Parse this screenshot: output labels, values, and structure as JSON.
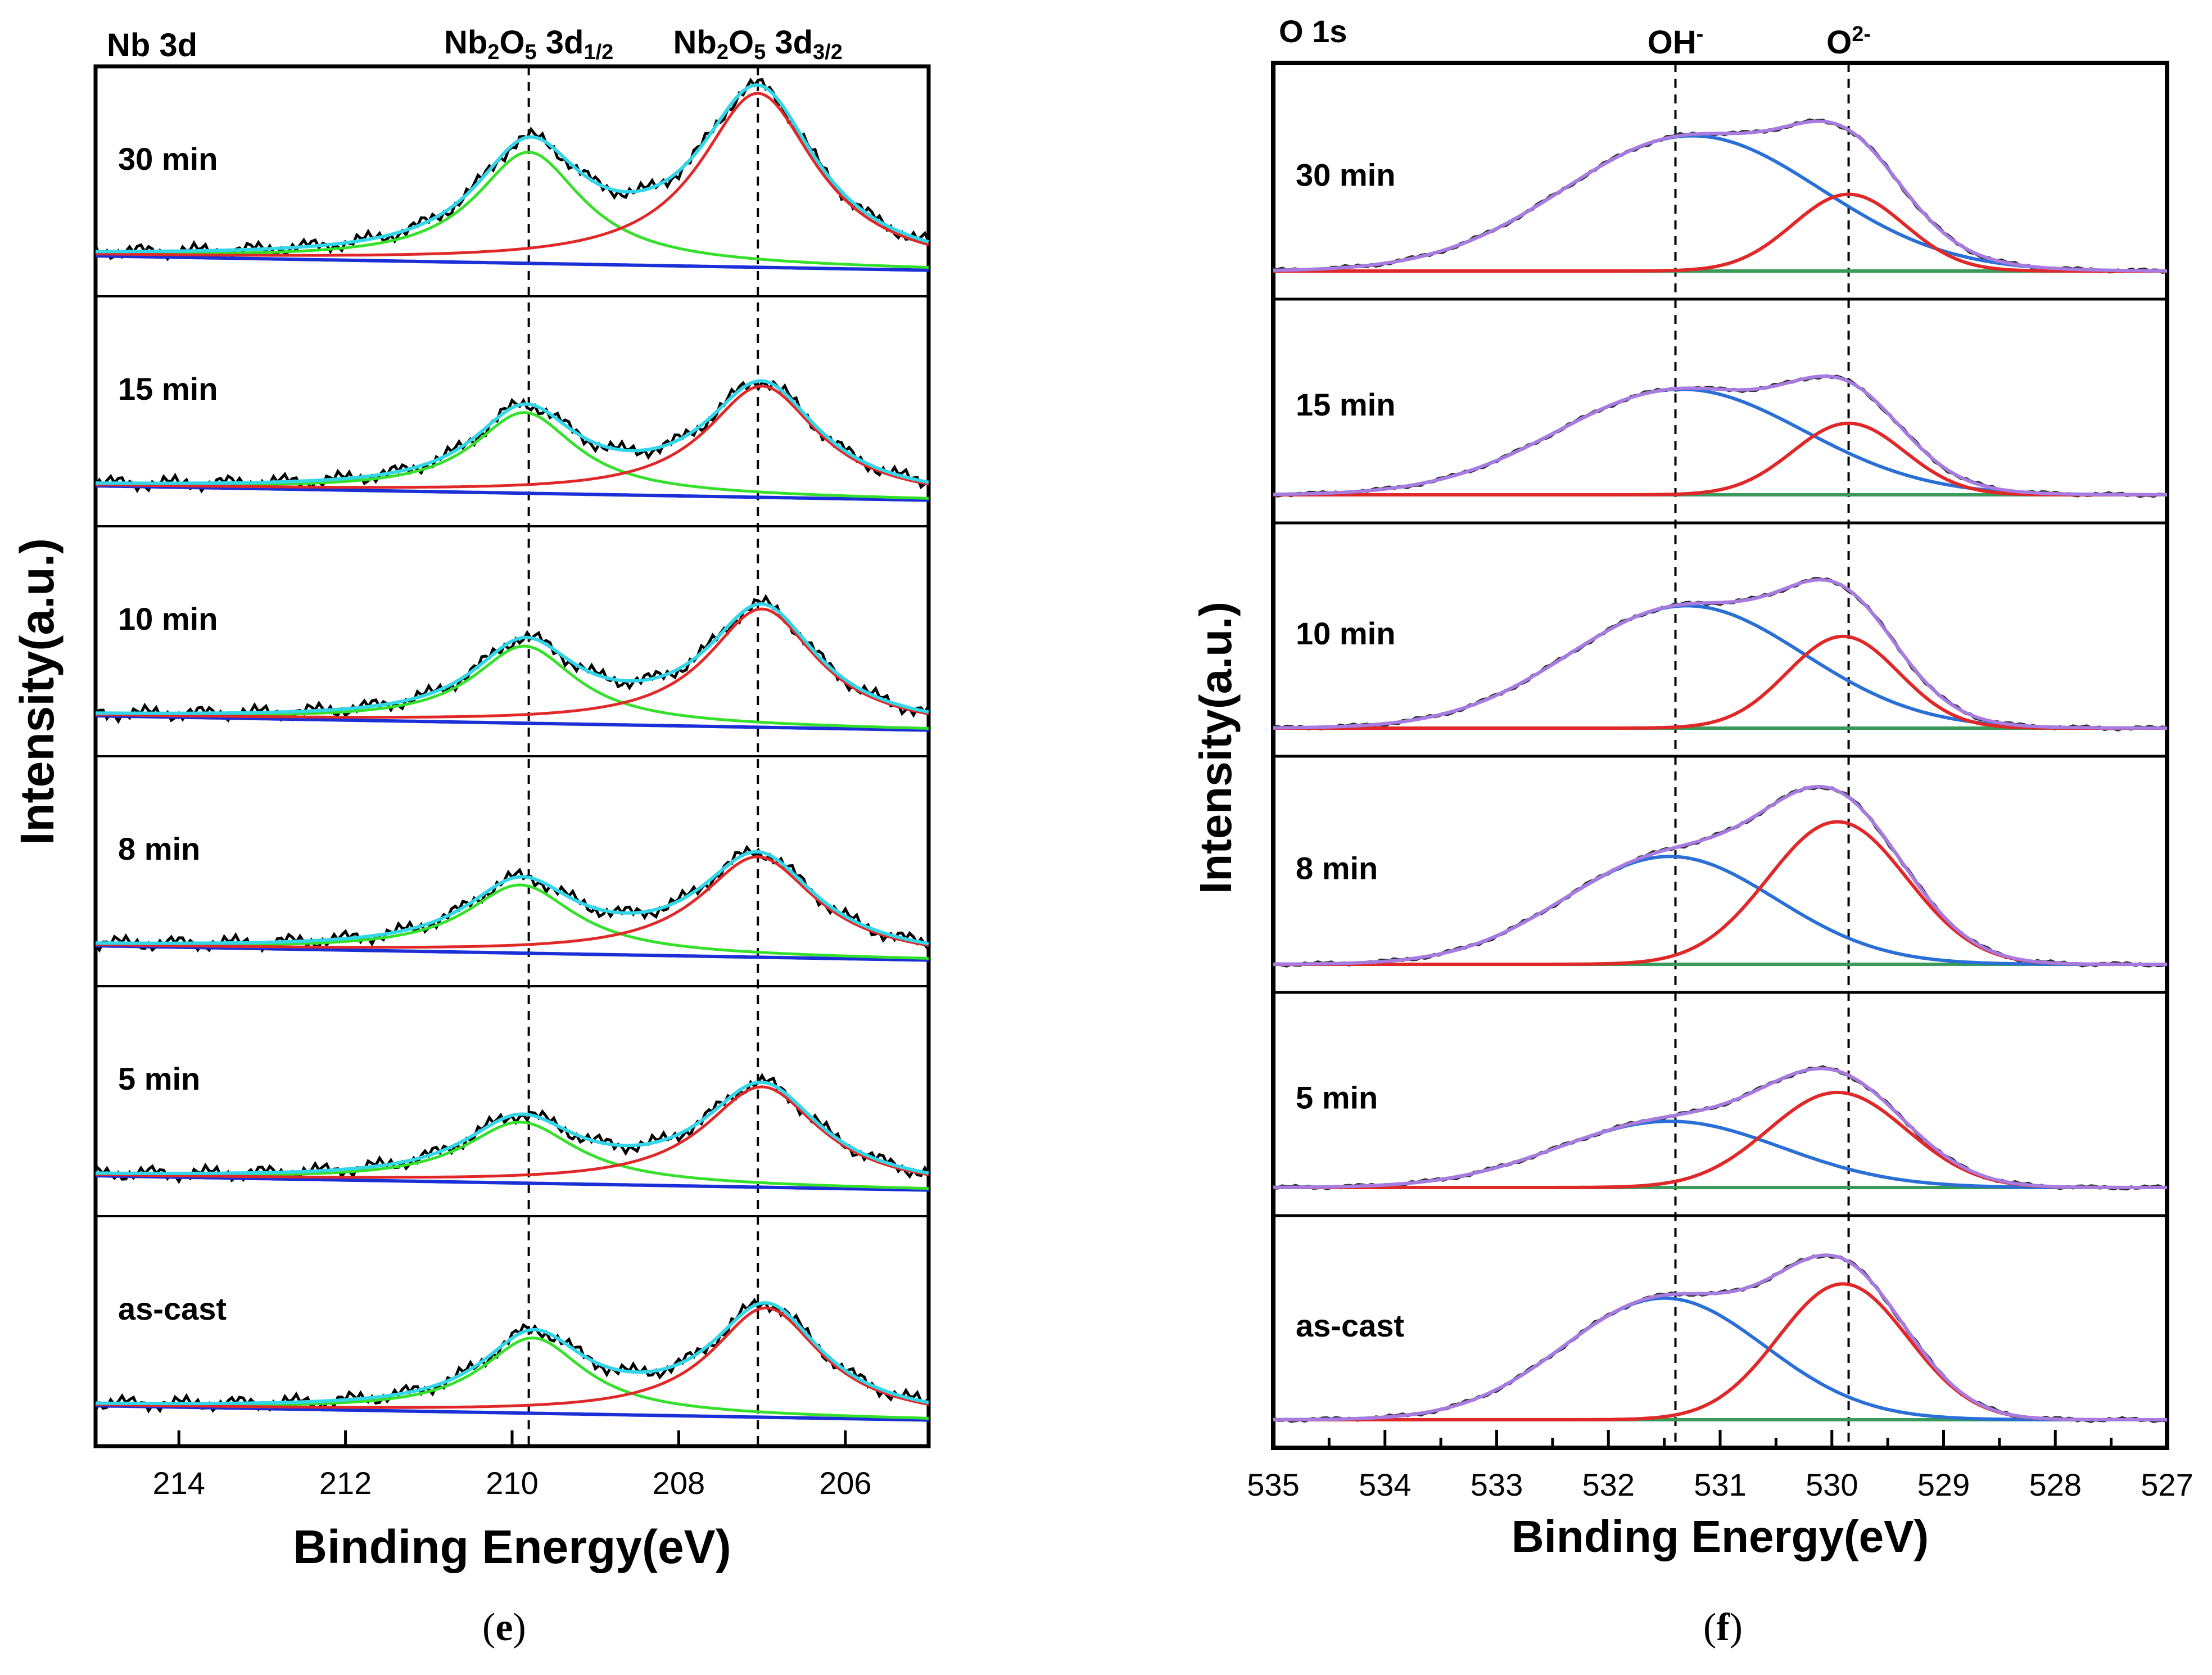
{
  "chart_data": [
    {
      "type": "line",
      "panel_id": "e",
      "title": "Nb 3d",
      "xlabel": "Binding Energy(eV)",
      "ylabel": "Intensity(a.u.)",
      "xlim": [
        215,
        205
      ],
      "x_reversed": true,
      "xticks": [
        214,
        212,
        210,
        208,
        206
      ],
      "xtick_labels": [
        "214",
        "212",
        "210",
        "208",
        "206"
      ],
      "reference_lines": [
        {
          "x": 209.8,
          "label_main": "Nb",
          "sub1": "2",
          "label_mid": "O",
          "sub2": "5",
          "label_tail": " 3d",
          "sub3": "1/2"
        },
        {
          "x": 207.05,
          "label_main": "Nb",
          "sub1": "2",
          "label_mid": "O",
          "sub2": "5",
          "label_tail": " 3d",
          "sub3": "3/2"
        }
      ],
      "series_legend": [
        {
          "name": "raw data",
          "color": "#000000"
        },
        {
          "name": "fit envelope",
          "color": "#33d6e8"
        },
        {
          "name": "Nb2O5 3d1/2 component",
          "color": "#35e02a"
        },
        {
          "name": "Nb2O5 3d3/2 component",
          "color": "#e02828"
        },
        {
          "name": "background",
          "color": "#1a2fd6"
        }
      ],
      "samples": [
        {
          "label": "30 min",
          "bg": [
            0.1,
            0.02
          ],
          "p1": {
            "center": 209.8,
            "height": 0.62,
            "width": 0.78
          },
          "p2": {
            "center": 207.05,
            "height": 0.97,
            "width": 0.85
          }
        },
        {
          "label": "15 min",
          "bg": [
            0.1,
            0.02
          ],
          "p1": {
            "center": 209.85,
            "height": 0.45,
            "width": 0.75
          },
          "p2": {
            "center": 207.0,
            "height": 0.62,
            "width": 0.82
          }
        },
        {
          "label": "10 min",
          "bg": [
            0.1,
            0.02
          ],
          "p1": {
            "center": 209.85,
            "height": 0.43,
            "width": 0.75
          },
          "p2": {
            "center": 207.0,
            "height": 0.66,
            "width": 0.8
          }
        },
        {
          "label": "8 min",
          "bg": [
            0.1,
            0.02
          ],
          "p1": {
            "center": 209.9,
            "height": 0.38,
            "width": 0.8
          },
          "p2": {
            "center": 207.05,
            "height": 0.56,
            "width": 0.85
          }
        },
        {
          "label": "5 min",
          "bg": [
            0.1,
            0.02
          ],
          "p1": {
            "center": 209.9,
            "height": 0.34,
            "width": 0.82
          },
          "p2": {
            "center": 207.0,
            "height": 0.56,
            "width": 0.85
          }
        },
        {
          "label": "as-cast",
          "bg": [
            0.1,
            0.02
          ],
          "p1": {
            "center": 209.75,
            "height": 0.42,
            "width": 0.75
          },
          "p2": {
            "center": 206.95,
            "height": 0.61,
            "width": 0.8
          }
        }
      ]
    },
    {
      "type": "line",
      "panel_id": "f",
      "title": "O 1s",
      "xlabel": "Binding Energy(eV)",
      "ylabel": "Intensity(a.u.)",
      "xlim": [
        535,
        527
      ],
      "x_reversed": true,
      "xticks": [
        535,
        534,
        533,
        532,
        531,
        530,
        529,
        528,
        527
      ],
      "xtick_labels": [
        "535",
        "534",
        "533",
        "532",
        "531",
        "530",
        "529",
        "528",
        "527"
      ],
      "reference_lines": [
        {
          "x": 531.4,
          "label_main": "OH",
          "sup": "-"
        },
        {
          "x": 529.85,
          "label_main": "O",
          "sup": "2-"
        }
      ],
      "series_legend": [
        {
          "name": "raw data",
          "color": "#2b2b2b"
        },
        {
          "name": "fit envelope",
          "color": "#a77be0"
        },
        {
          "name": "OH- component",
          "color": "#2a6fd6"
        },
        {
          "name": "O2- component",
          "color": "#e02828"
        },
        {
          "name": "background",
          "color": "#3a9a5a"
        }
      ],
      "samples": [
        {
          "label": "30 min",
          "oh": {
            "center": 531.25,
            "height": 0.74,
            "width": 1.15
          },
          "ox": {
            "center": 529.85,
            "height": 0.42,
            "width": 0.5
          }
        },
        {
          "label": "15 min",
          "oh": {
            "center": 531.35,
            "height": 0.62,
            "width": 1.1
          },
          "ox": {
            "center": 529.85,
            "height": 0.42,
            "width": 0.5
          }
        },
        {
          "label": "10 min",
          "oh": {
            "center": 531.3,
            "height": 0.68,
            "width": 1.05
          },
          "ox": {
            "center": 529.9,
            "height": 0.51,
            "width": 0.5
          }
        },
        {
          "label": "8 min",
          "oh": {
            "center": 531.45,
            "height": 0.59,
            "width": 0.95
          },
          "ox": {
            "center": 529.95,
            "height": 0.78,
            "width": 0.62
          }
        },
        {
          "label": "5 min",
          "oh": {
            "center": 531.45,
            "height": 0.39,
            "width": 1.0
          },
          "ox": {
            "center": 529.95,
            "height": 0.56,
            "width": 0.62
          }
        },
        {
          "label": "as-cast",
          "oh": {
            "center": 531.5,
            "height": 0.68,
            "width": 0.9
          },
          "ox": {
            "center": 529.9,
            "height": 0.76,
            "width": 0.58
          }
        }
      ]
    }
  ],
  "captions": [
    {
      "open": "(",
      "letter": "e",
      "close": ")"
    },
    {
      "open": "(",
      "letter": "f",
      "close": ")"
    }
  ]
}
